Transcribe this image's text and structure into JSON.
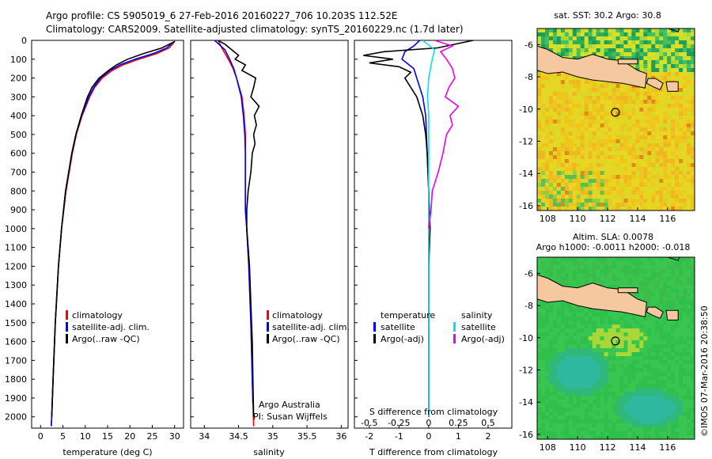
{
  "title": {
    "line1": "Argo profile: CS 5905019_6 27-Feb-2016 20160227_706 10.203S 112.52E",
    "line2": "Climatology: CARS2009. Satellite-adjusted climatology: synTS_20160229.nc (1.7d later)"
  },
  "colors": {
    "climatology": "#ff0000",
    "satellite": "#0000ff",
    "argo": "#000000",
    "sal_satellite": "#00e5ee",
    "sal_argo": "#ee00ee",
    "land": "#f5c8a0"
  },
  "depth_axis": {
    "ticks": [
      0,
      100,
      200,
      300,
      400,
      500,
      600,
      700,
      800,
      900,
      1000,
      1100,
      1200,
      1300,
      1400,
      1500,
      1600,
      1700,
      1800,
      1900,
      2000
    ],
    "range": [
      0,
      2060
    ]
  },
  "legend": {
    "climatology": "climatology",
    "satellite_adj": "satellite-adj. clim.",
    "argo_raw": "Argo(..raw -QC)",
    "temperature_header": "temperature",
    "salinity_header": "salinity",
    "satellite": "satellite",
    "argo_adj": "Argo(-adj)"
  },
  "credits": {
    "line1": "Argo Australia",
    "line2": "PI: Susan Wijffels"
  },
  "chart_data": [
    {
      "type": "line",
      "name": "temperature-profile",
      "xlabel": "temperature (deg C)",
      "xticks": [
        0,
        5,
        10,
        15,
        20,
        25,
        30
      ],
      "xlim": [
        -2,
        32
      ],
      "series": [
        {
          "name": "climatology",
          "depth": [
            10,
            40,
            70,
            100,
            130,
            160,
            200,
            250,
            300,
            400,
            500,
            600,
            800,
            1000,
            1200,
            1500,
            1800,
            2000,
            2050
          ],
          "values": [
            29.9,
            28.8,
            26,
            22,
            18.5,
            16,
            13.8,
            12.1,
            11,
            9.3,
            8,
            7.1,
            5.7,
            4.7,
            4.0,
            3.3,
            2.8,
            2.5,
            2.4
          ]
        },
        {
          "name": "satellite",
          "depth": [
            10,
            40,
            70,
            100,
            130,
            160,
            200,
            250,
            300,
            400,
            500,
            600,
            800,
            1000,
            1200,
            1500,
            1800,
            2000,
            2050
          ],
          "values": [
            29.6,
            28.3,
            25.2,
            21.2,
            17.8,
            15.5,
            13.4,
            11.9,
            10.8,
            9.2,
            7.9,
            7.0,
            5.6,
            4.7,
            4.0,
            3.3,
            2.8,
            2.5,
            2.4
          ]
        },
        {
          "name": "argo",
          "depth": [
            5,
            40,
            70,
            100,
            130,
            160,
            200,
            250,
            300,
            400,
            500,
            600,
            800,
            1000,
            1200,
            1500,
            1800,
            2000
          ],
          "values": [
            30.1,
            27.2,
            23,
            19.5,
            17.0,
            15.2,
            13.1,
            11.5,
            10.5,
            9.1,
            7.9,
            7.0,
            5.6,
            4.7,
            4.0,
            3.3,
            2.8,
            2.5
          ]
        }
      ]
    },
    {
      "type": "line",
      "name": "salinity-profile",
      "xlabel": "salinity",
      "xticks": [
        34,
        34.5,
        35,
        35.5,
        36
      ],
      "xlim": [
        33.8,
        36.1
      ],
      "series": [
        {
          "name": "climatology",
          "depth": [
            0,
            50,
            100,
            150,
            200,
            300,
            400,
            500,
            600,
            700,
            800,
            900,
            1000,
            1200,
            1500,
            1800,
            2050
          ],
          "values": [
            34.2,
            34.27,
            34.35,
            34.42,
            34.47,
            34.55,
            34.58,
            34.6,
            34.6,
            34.6,
            34.6,
            34.6,
            34.62,
            34.65,
            34.68,
            34.7,
            34.72
          ]
        },
        {
          "name": "satellite",
          "depth": [
            0,
            50,
            100,
            150,
            200,
            300,
            400,
            500,
            600,
            700,
            800,
            900,
            1000,
            1200,
            1500,
            1800,
            1930
          ],
          "values": [
            34.15,
            34.3,
            34.37,
            34.43,
            34.47,
            34.54,
            34.57,
            34.59,
            34.6,
            34.6,
            34.6,
            34.6,
            34.62,
            34.65,
            34.68,
            34.7,
            34.71
          ]
        },
        {
          "name": "argo",
          "depth": [
            0,
            20,
            50,
            80,
            100,
            130,
            160,
            200,
            250,
            300,
            350,
            400,
            450,
            500,
            550,
            600,
            700,
            800,
            900,
            1000,
            1100,
            1200,
            1400,
            1600,
            1800,
            2000
          ],
          "values": [
            34.2,
            34.3,
            34.4,
            34.5,
            34.45,
            34.6,
            34.55,
            34.75,
            34.72,
            34.68,
            34.8,
            34.73,
            34.76,
            34.72,
            34.74,
            34.7,
            34.68,
            34.64,
            34.62,
            34.62,
            34.64,
            34.66,
            34.68,
            34.7,
            34.71,
            34.72
          ]
        }
      ]
    },
    {
      "type": "line",
      "name": "difference-profile",
      "xlabel": "T difference from climatology",
      "xticks": [
        -2,
        -1,
        0,
        1,
        2
      ],
      "xlim": [
        -2.5,
        2.8
      ],
      "top_xlabel": "S difference from climatology",
      "top_xticks": [
        "-0.5",
        "-0.25",
        "0",
        "0.25",
        "0.5"
      ],
      "series": [
        {
          "name": "T satellite",
          "depth": [
            0,
            30,
            60,
            100,
            150,
            200,
            300,
            400,
            600,
            800,
            1000,
            1500,
            2000
          ],
          "values": [
            -0.3,
            -0.5,
            -0.8,
            -0.9,
            -0.5,
            -0.4,
            -0.2,
            -0.1,
            -0.05,
            0,
            0,
            0,
            0
          ]
        },
        {
          "name": "T Argo(-adj)",
          "depth": [
            0,
            40,
            60,
            80,
            100,
            120,
            140,
            170,
            200,
            250,
            300,
            400,
            500,
            600,
            800,
            1000,
            1200,
            1500,
            2000
          ],
          "values": [
            1.5,
            0.3,
            -1.5,
            -2.2,
            -1.2,
            -2.0,
            -1.0,
            -0.6,
            -0.8,
            -0.6,
            -0.4,
            -0.2,
            -0.1,
            -0.05,
            0,
            0.05,
            0,
            0,
            0
          ]
        },
        {
          "name": "S satellite",
          "depth": [
            0,
            50,
            100,
            200,
            300,
            400,
            500,
            700,
            1000,
            1500,
            2000
          ],
          "values": [
            -0.05,
            0.05,
            0.03,
            0,
            -0.01,
            0,
            0,
            0,
            0,
            0,
            0
          ]
        },
        {
          "name": "S Argo(-adj)",
          "depth": [
            0,
            30,
            60,
            100,
            150,
            200,
            250,
            300,
            350,
            400,
            450,
            500,
            600,
            700,
            800,
            900,
            1000
          ],
          "values": [
            0.05,
            0.2,
            0.1,
            0.15,
            0.2,
            0.22,
            0.17,
            0.14,
            0.25,
            0.18,
            0.2,
            0.15,
            0.12,
            0.08,
            0.03,
            0.02,
            0
          ]
        }
      ]
    },
    {
      "type": "heatmap",
      "name": "sst-map",
      "title": "sat. SST: 30.2  Argo: 30.8",
      "xticks": [
        108,
        110,
        112,
        114,
        116
      ],
      "yticks": [
        -6,
        -8,
        -10,
        -12,
        -14,
        -16
      ],
      "xlim": [
        107.3,
        117.8
      ],
      "ylim": [
        -16.3,
        -5
      ],
      "profile_location": [
        112.52,
        -10.203
      ]
    },
    {
      "type": "heatmap",
      "name": "sla-map",
      "title_line1": "Altim. SLA: 0.0078",
      "title_line2": "Argo h1000: -0.0011  h2000: -0.018",
      "xticks": [
        108,
        110,
        112,
        114,
        116
      ],
      "yticks": [
        -6,
        -8,
        -10,
        -12,
        -14,
        -16
      ],
      "xlim": [
        107.3,
        117.8
      ],
      "ylim": [
        -16.3,
        -5
      ],
      "profile_location": [
        112.52,
        -10.203
      ]
    }
  ],
  "watermark": "©IMOS 07-Mar-2016 20:38:50"
}
